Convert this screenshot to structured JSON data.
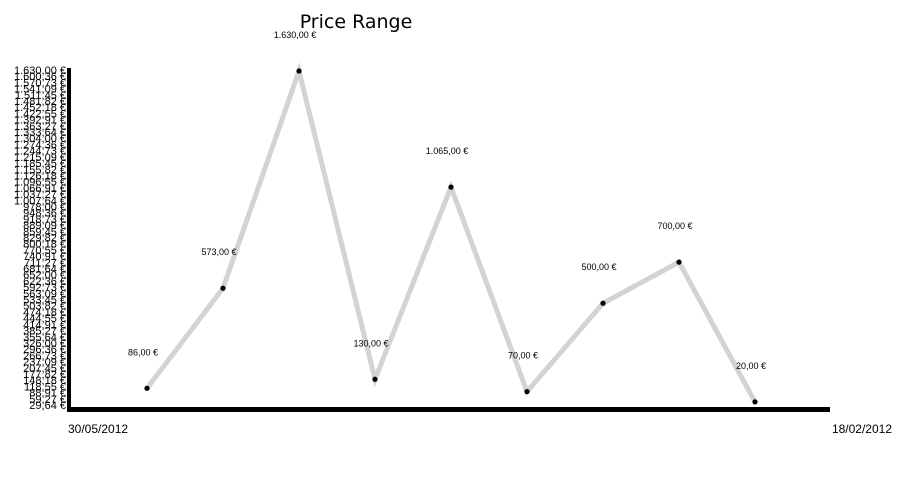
{
  "chart_data": {
    "type": "line",
    "title": "Price Range",
    "xlabel": "",
    "ylabel": "",
    "x_tick_labels": [
      "30/05/2012",
      "18/02/2012"
    ],
    "y_tick_labels": [
      "1.630,00 €",
      "1.600,36 €",
      "1.570,73 €",
      "1.541,09 €",
      "1.511,45 €",
      "1.481,82 €",
      "1.452,18 €",
      "1.422,55 €",
      "1.392,91 €",
      "1.363,27 €",
      "1.333,64 €",
      "1.304,00 €",
      "1.274,36 €",
      "1.244,73 €",
      "1.215,09 €",
      "1.185,45 €",
      "1.155,82 €",
      "1.126,18 €",
      "1.096,55 €",
      "1.066,91 €",
      "1.037,27 €",
      "1.007,64 €",
      "978,00 €",
      "948,36 €",
      "918,73 €",
      "889,09 €",
      "859,45 €",
      "829,82 €",
      "800,18 €",
      "770,55 €",
      "740,91 €",
      "711,27 €",
      "681,64 €",
      "652,00 €",
      "622,36 €",
      "592,73 €",
      "563,09 €",
      "533,45 €",
      "503,82 €",
      "474,18 €",
      "444,55 €",
      "414,91 €",
      "385,27 €",
      "355,64 €",
      "326,00 €",
      "296,36 €",
      "266,73 €",
      "237,09 €",
      "207,45 €",
      "177,82 €",
      "148,18 €",
      "118,55 €",
      "88,91 €",
      "59,27 €",
      "29,64 €"
    ],
    "ylim": [
      29.64,
      1630
    ],
    "values": [
      86,
      573,
      1630,
      130,
      1065,
      70,
      500,
      700,
      20
    ],
    "data_labels": [
      "86,00 €",
      "573,00 €",
      "1.630,00 €",
      "130,00 €",
      "1.065,00 €",
      "70,00 €",
      "500,00 €",
      "700,00 €",
      "20,00 €"
    ],
    "line_color": "#d3d3d3",
    "marker_color": "#000000",
    "axis_color": "#000000",
    "grid": false,
    "legend": "none"
  }
}
